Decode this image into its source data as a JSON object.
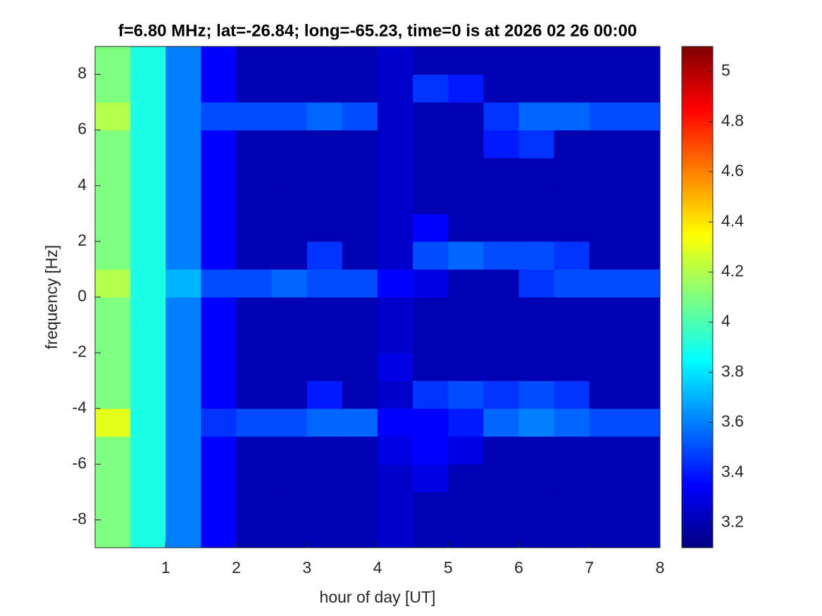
{
  "chart_data": {
    "type": "heatmap",
    "title": "f=6.80 MHz;  lat=-26.84; long=-65.23, time=0 is at 2026 02 26 00:00",
    "xlabel": "hour of day [UT]",
    "ylabel": "frequency [Hz]",
    "x": [
      0.25,
      0.75,
      1.25,
      1.75,
      2.25,
      2.75,
      3.25,
      3.75,
      4.25,
      4.75,
      5.25,
      5.75,
      6.25,
      6.75,
      7.25,
      7.75
    ],
    "y": [
      -8.5,
      -7.5,
      -6.5,
      -5.5,
      -4.5,
      -3.5,
      -2.5,
      -1.5,
      -0.5,
      0.5,
      1.5,
      2.5,
      3.5,
      4.5,
      5.5,
      6.5,
      7.5,
      8.5
    ],
    "values": [
      [
        4.1,
        3.9,
        3.6,
        3.35,
        3.2,
        3.2,
        3.2,
        3.2,
        3.25,
        3.2,
        3.2,
        3.2,
        3.2,
        3.2,
        3.2,
        3.2
      ],
      [
        4.1,
        3.9,
        3.6,
        3.35,
        3.2,
        3.2,
        3.2,
        3.2,
        3.25,
        3.2,
        3.2,
        3.2,
        3.2,
        3.2,
        3.2,
        3.2
      ],
      [
        4.1,
        3.9,
        3.6,
        3.35,
        3.2,
        3.2,
        3.2,
        3.2,
        3.25,
        3.3,
        3.2,
        3.2,
        3.2,
        3.2,
        3.2,
        3.2
      ],
      [
        4.1,
        3.9,
        3.6,
        3.35,
        3.2,
        3.2,
        3.2,
        3.2,
        3.3,
        3.35,
        3.3,
        3.2,
        3.2,
        3.2,
        3.2,
        3.2
      ],
      [
        4.3,
        3.9,
        3.6,
        3.45,
        3.5,
        3.5,
        3.55,
        3.55,
        3.35,
        3.35,
        3.4,
        3.55,
        3.6,
        3.55,
        3.5,
        3.5
      ],
      [
        4.1,
        3.9,
        3.6,
        3.35,
        3.2,
        3.2,
        3.4,
        3.2,
        3.25,
        3.45,
        3.5,
        3.45,
        3.5,
        3.45,
        3.2,
        3.2
      ],
      [
        4.1,
        3.9,
        3.6,
        3.35,
        3.2,
        3.2,
        3.2,
        3.2,
        3.3,
        3.2,
        3.2,
        3.2,
        3.2,
        3.2,
        3.2,
        3.2
      ],
      [
        4.1,
        3.9,
        3.6,
        3.35,
        3.2,
        3.2,
        3.2,
        3.2,
        3.25,
        3.2,
        3.2,
        3.2,
        3.2,
        3.2,
        3.2,
        3.2
      ],
      [
        4.1,
        3.9,
        3.6,
        3.35,
        3.2,
        3.2,
        3.2,
        3.2,
        3.25,
        3.2,
        3.2,
        3.2,
        3.2,
        3.2,
        3.2,
        3.2
      ],
      [
        4.2,
        3.9,
        3.7,
        3.5,
        3.5,
        3.55,
        3.5,
        3.5,
        3.35,
        3.3,
        3.2,
        3.2,
        3.45,
        3.5,
        3.5,
        3.5
      ],
      [
        4.1,
        3.9,
        3.6,
        3.35,
        3.2,
        3.2,
        3.45,
        3.2,
        3.25,
        3.5,
        3.55,
        3.5,
        3.5,
        3.45,
        3.2,
        3.2
      ],
      [
        4.1,
        3.9,
        3.6,
        3.35,
        3.2,
        3.2,
        3.2,
        3.2,
        3.25,
        3.35,
        3.2,
        3.2,
        3.2,
        3.2,
        3.2,
        3.2
      ],
      [
        4.1,
        3.9,
        3.6,
        3.35,
        3.2,
        3.2,
        3.2,
        3.2,
        3.25,
        3.2,
        3.2,
        3.2,
        3.2,
        3.2,
        3.2,
        3.2
      ],
      [
        4.1,
        3.9,
        3.6,
        3.35,
        3.2,
        3.2,
        3.2,
        3.2,
        3.25,
        3.2,
        3.2,
        3.2,
        3.2,
        3.2,
        3.2,
        3.2
      ],
      [
        4.1,
        3.9,
        3.6,
        3.35,
        3.2,
        3.2,
        3.2,
        3.2,
        3.25,
        3.2,
        3.2,
        3.4,
        3.45,
        3.2,
        3.2,
        3.2
      ],
      [
        4.2,
        3.9,
        3.6,
        3.5,
        3.5,
        3.5,
        3.55,
        3.5,
        3.25,
        3.2,
        3.2,
        3.45,
        3.55,
        3.55,
        3.5,
        3.5
      ],
      [
        4.1,
        3.9,
        3.6,
        3.35,
        3.2,
        3.2,
        3.2,
        3.2,
        3.25,
        3.45,
        3.4,
        3.2,
        3.2,
        3.2,
        3.2,
        3.2
      ],
      [
        4.1,
        3.9,
        3.6,
        3.35,
        3.2,
        3.2,
        3.2,
        3.2,
        3.25,
        3.2,
        3.2,
        3.2,
        3.2,
        3.2,
        3.2,
        3.2
      ]
    ],
    "xlim": [
      0,
      8
    ],
    "ylim": [
      -9,
      9
    ],
    "xticks": [
      1,
      2,
      3,
      4,
      5,
      6,
      7,
      8
    ],
    "yticks": [
      -8,
      -6,
      -4,
      -2,
      0,
      2,
      4,
      6,
      8
    ],
    "clim": [
      3.1,
      5.1
    ],
    "cticks": [
      3.2,
      3.4,
      3.6,
      3.8,
      4,
      4.2,
      4.4,
      4.6,
      4.8,
      5
    ],
    "colormap": "jet"
  }
}
